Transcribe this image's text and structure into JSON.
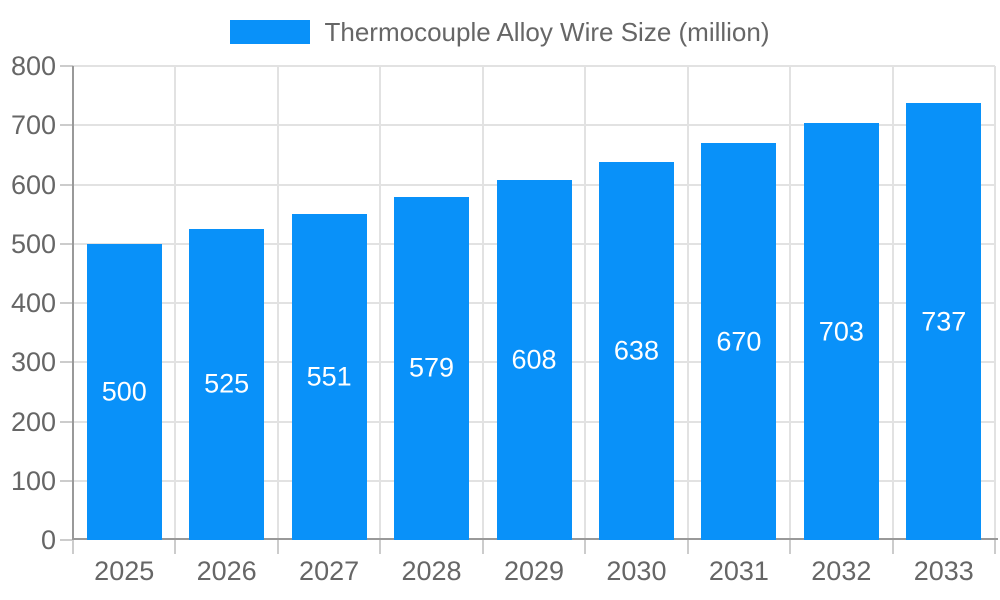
{
  "legend": {
    "items": [
      {
        "label": "Thermocouple Alloy Wire Size (million)",
        "color": "#0991f9"
      }
    ]
  },
  "chart_data": {
    "type": "bar",
    "title": "Thermocouple Alloy Wire Size (million)",
    "categories": [
      "2025",
      "2026",
      "2027",
      "2028",
      "2029",
      "2030",
      "2031",
      "2032",
      "2033"
    ],
    "series": [
      {
        "name": "Thermocouple Alloy Wire Size (million)",
        "values": [
          500,
          525,
          551,
          579,
          608,
          638,
          670,
          703,
          737
        ]
      }
    ],
    "values": [
      500,
      525,
      551,
      579,
      608,
      638,
      670,
      703,
      737
    ],
    "value_labels_shown": true,
    "xlabel": "",
    "ylabel": "",
    "ylim": [
      0,
      800
    ],
    "yticks": [
      0,
      100,
      200,
      300,
      400,
      500,
      600,
      700,
      800
    ],
    "grid": true,
    "legend_position": "top-center",
    "colors": {
      "bar": "#0991f9",
      "value_label": "#ffffff",
      "axis_text": "#666666",
      "legend_text": "#666666",
      "axis_line": "#999999",
      "grid_line": "#e2e2e2",
      "tick_line": "#cccccc",
      "background": "#ffffff"
    }
  }
}
